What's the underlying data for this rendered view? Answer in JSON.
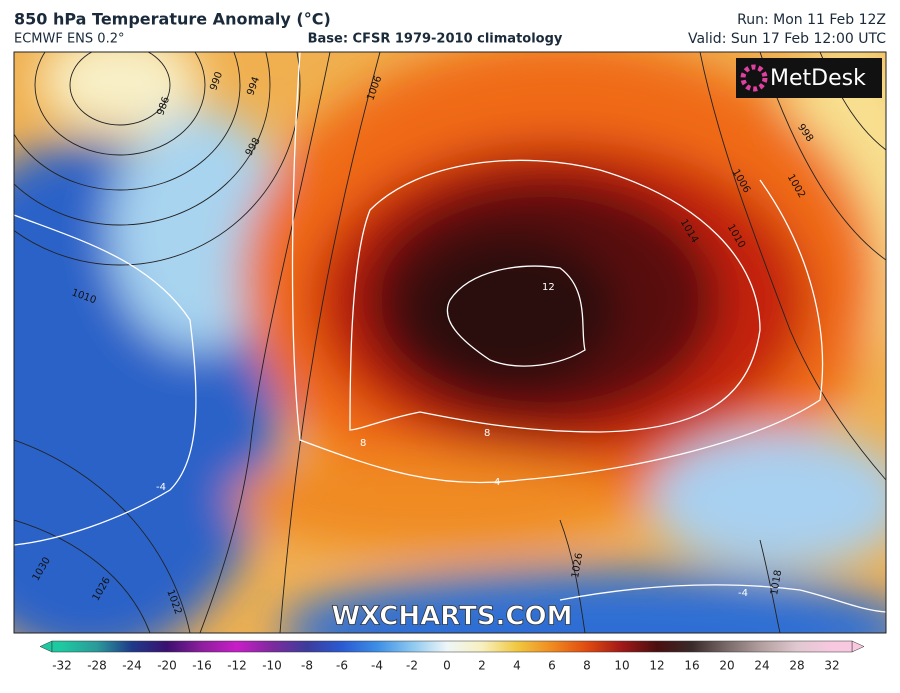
{
  "header": {
    "title": "850 hPa Temperature Anomaly (°C)",
    "model": "ECMWF ENS 0.2°",
    "base": "Base: CFSR 1979-2010 climatology",
    "run": "Run: Mon 11 Feb 12Z",
    "valid": "Valid: Sun 17 Feb 12:00 UTC"
  },
  "logo": "MetDesk",
  "watermark": "WXCHARTS.COM",
  "contour_labels": [
    "986",
    "990",
    "994",
    "998",
    "1006",
    "1010",
    "1014",
    "1010",
    "1006",
    "1002",
    "998",
    "12",
    "8",
    "8",
    "-4",
    "4",
    "-4",
    "1030",
    "1026",
    "1022",
    "1026",
    "1018"
  ],
  "colorbar": {
    "labels": [
      -32,
      -28,
      -24,
      -20,
      -16,
      -12,
      -10,
      -8,
      -6,
      -4,
      -2,
      0,
      2,
      4,
      6,
      8,
      10,
      12,
      16,
      20,
      24,
      28,
      32
    ],
    "colors": [
      "#1ec8a0",
      "#2a9a9a",
      "#1e3a8a",
      "#3b1070",
      "#8e1e9e",
      "#c81ec8",
      "#7e2a9e",
      "#3c3c9c",
      "#2a5ad2",
      "#3c8ee6",
      "#8cc8f0",
      "#eef6f8",
      "#f8f0c0",
      "#f0c840",
      "#f08a20",
      "#e04a10",
      "#a01818",
      "#4a0f0f",
      "#3a2a2a",
      "#7a6a6a",
      "#b4a0a0",
      "#e0c8d0",
      "#f8c8e0"
    ]
  }
}
